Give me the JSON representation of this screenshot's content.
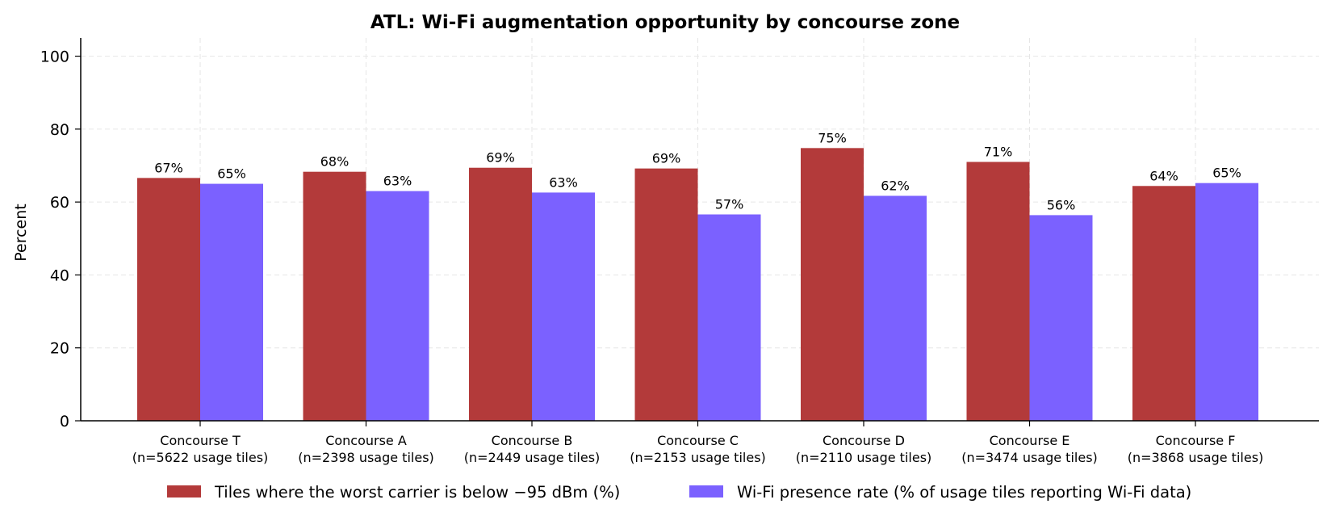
{
  "chart_data": {
    "type": "bar",
    "title": "ATL: Wi-Fi augmentation opportunity by concourse zone",
    "xlabel": "",
    "ylabel": "Percent",
    "ylim": [
      0,
      105
    ],
    "yticks": [
      0,
      20,
      40,
      60,
      80,
      100
    ],
    "grid": true,
    "legend_position": "bottom-center",
    "categories": [
      "Concourse T\n(n=5622 usage tiles)",
      "Concourse A\n(n=2398 usage tiles)",
      "Concourse B\n(n=2449 usage tiles)",
      "Concourse C\n(n=2153 usage tiles)",
      "Concourse D\n(n=2110 usage tiles)",
      "Concourse E\n(n=3474 usage tiles)",
      "Concourse F\n(n=3868 usage tiles)"
    ],
    "series": [
      {
        "name": "Tiles where the worst carrier is below −95 dBm (%)",
        "color": "#b33a3a",
        "values": [
          66.6,
          68.3,
          69.4,
          69.2,
          74.8,
          71.0,
          64.4
        ],
        "labels": [
          "67%",
          "68%",
          "69%",
          "69%",
          "75%",
          "71%",
          "64%"
        ]
      },
      {
        "name": "Wi-Fi presence rate (% of usage tiles reporting Wi-Fi data)",
        "color": "#7b61ff",
        "values": [
          65.0,
          63.0,
          62.6,
          56.6,
          61.7,
          56.4,
          65.2
        ],
        "labels": [
          "65%",
          "63%",
          "63%",
          "57%",
          "62%",
          "56%",
          "65%"
        ]
      }
    ]
  }
}
